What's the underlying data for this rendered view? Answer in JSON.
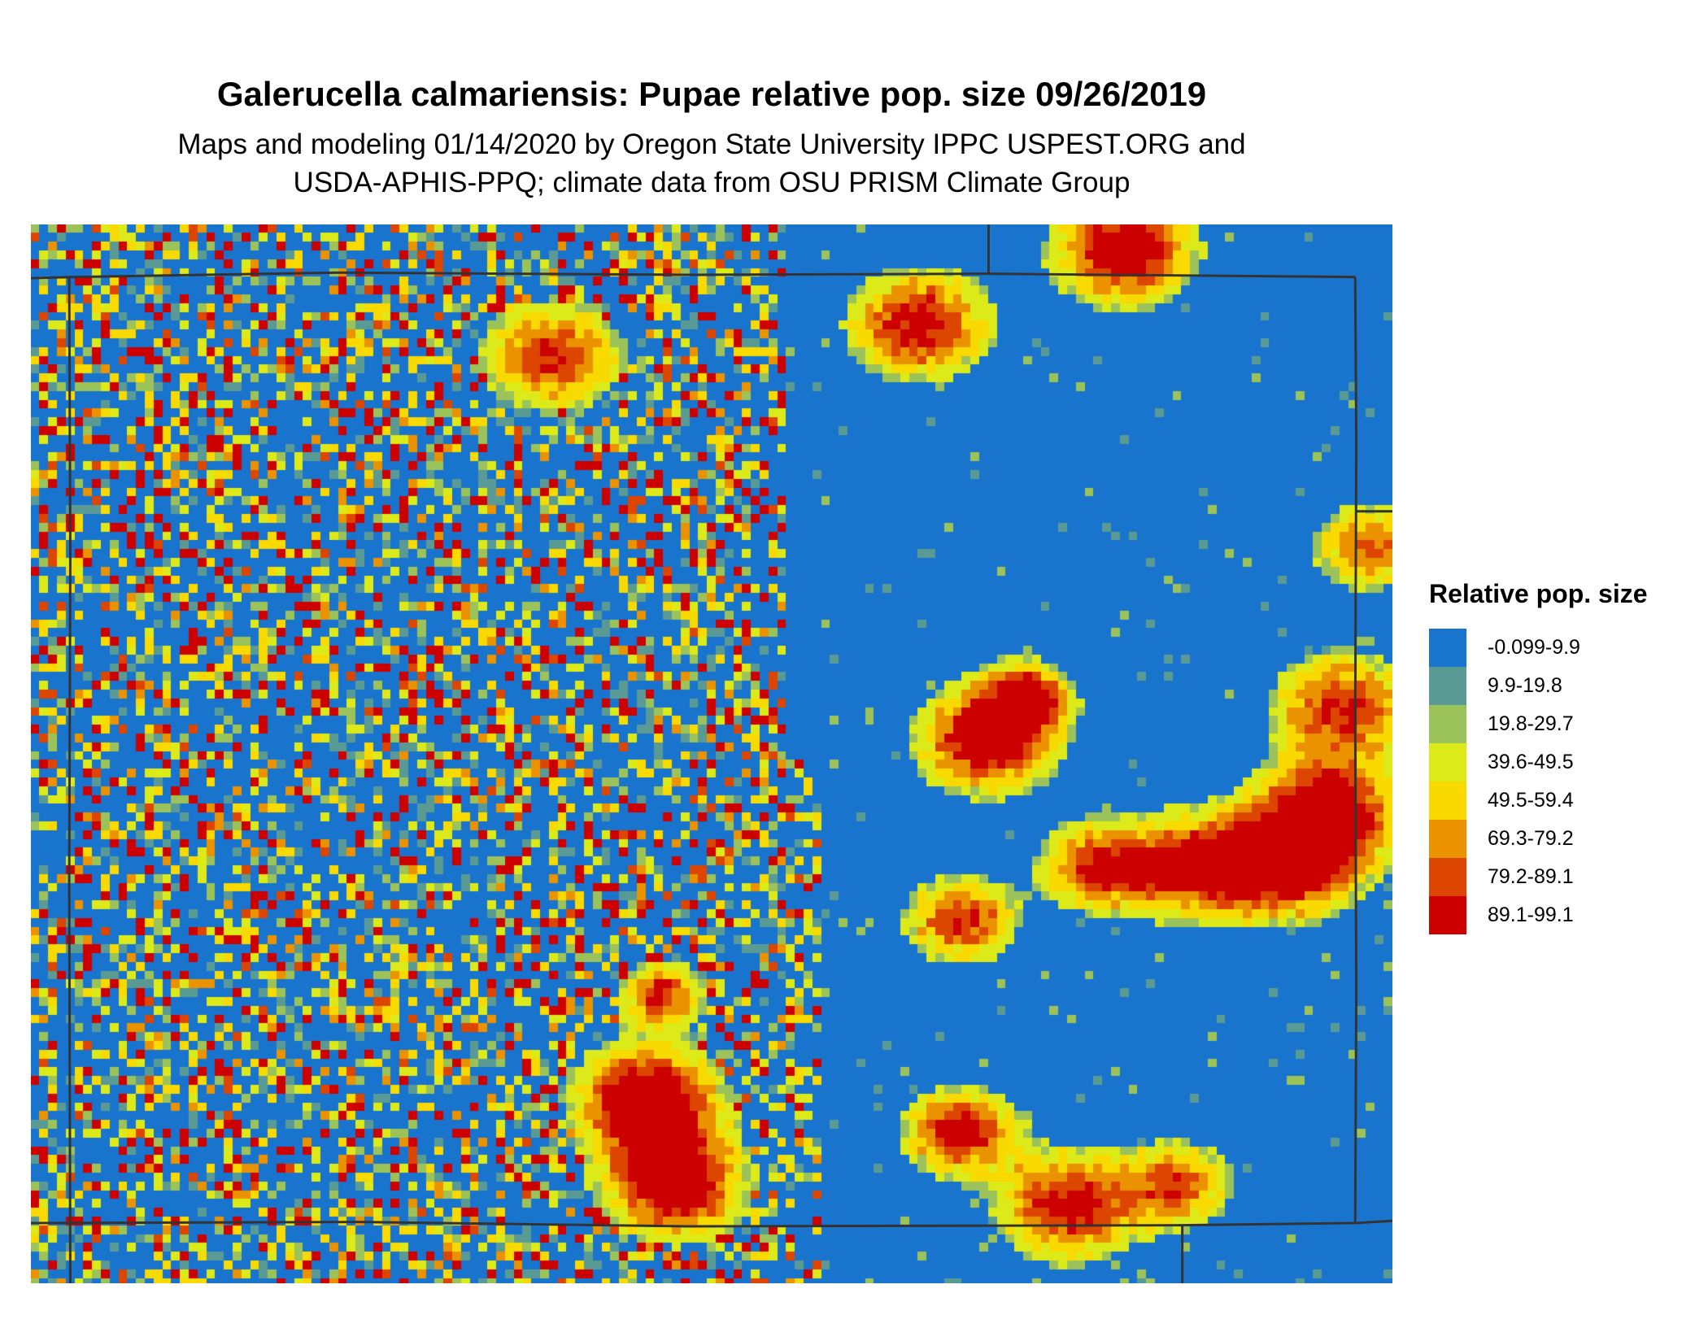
{
  "title": "Galerucella calmariensis: Pupae relative pop. size 09/26/2019",
  "subtitle_lines": [
    "Maps and modeling 01/14/2020 by Oregon State University IPPC USPEST.ORG and",
    "USDA-APHIS-PPQ; climate data from OSU PRISM Climate Group"
  ],
  "legend": {
    "title": "Relative pop. size",
    "items": [
      {
        "label": "-0.099-9.9",
        "color": "#1874CD"
      },
      {
        "label": "9.9-19.8",
        "color": "#5A9A94"
      },
      {
        "label": "19.8-29.7",
        "color": "#9CC35A"
      },
      {
        "label": "39.6-49.5",
        "color": "#DCEA1A"
      },
      {
        "label": "49.5-59.4",
        "color": "#F8DA00"
      },
      {
        "label": "69.3-79.2",
        "color": "#EA9200"
      },
      {
        "label": "79.2-89.1",
        "color": "#DC4600"
      },
      {
        "label": "89.1-99.1",
        "color": "#CD0000"
      }
    ]
  },
  "boundary_color": "#333333"
}
